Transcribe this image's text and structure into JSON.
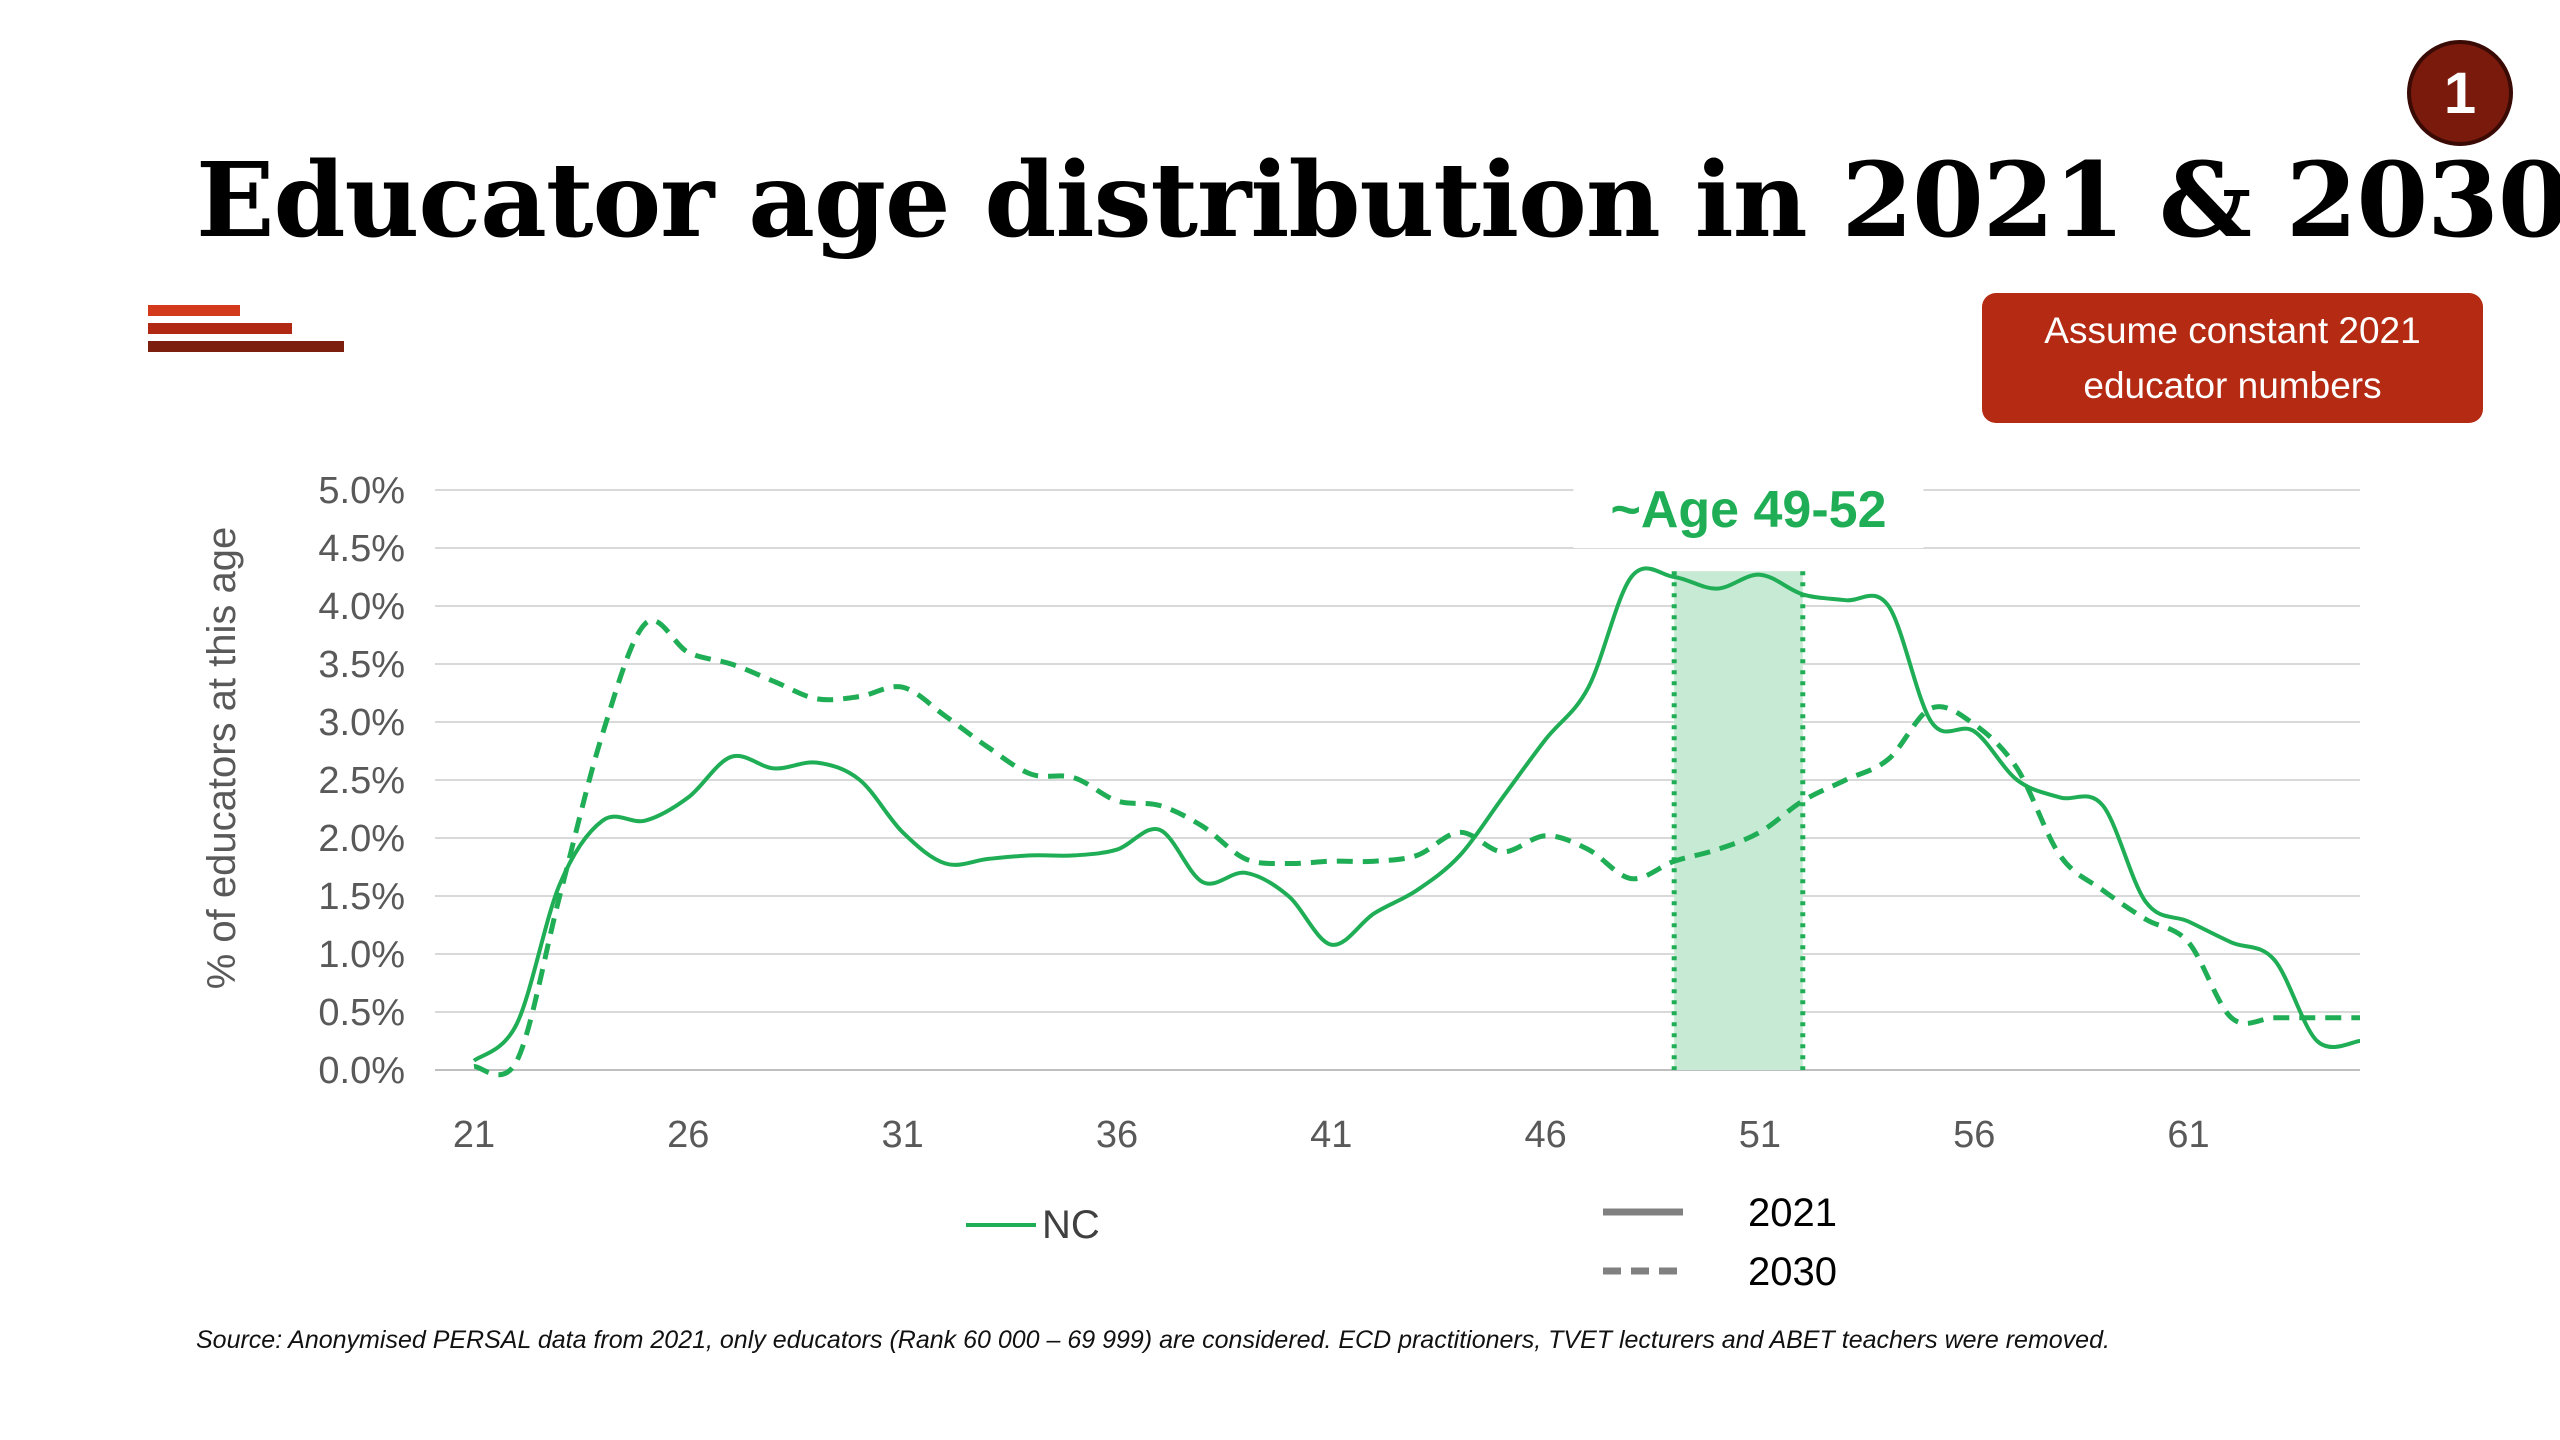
{
  "title": "Educator age distribution in 2021 & 2030",
  "badge": "1",
  "callout": {
    "line1": "Assume constant 2021",
    "line2": "educator numbers"
  },
  "source": "Source: Anonymised PERSAL data from 2021, only educators (Rank 60 000 – 69 999) are considered. ECD practitioners, TVET lecturers and ABET teachers were removed.",
  "colors": {
    "series": "#1fae55",
    "highlight": "#c6ead3",
    "accent": "#b52a12",
    "badge": "#7a1a0c"
  },
  "chart_data": {
    "type": "line",
    "title": "",
    "xlabel": "",
    "ylabel": "% of educators at this age",
    "xlim": [
      21,
      65
    ],
    "ylim": [
      0,
      5.0
    ],
    "x_ticks": [
      21,
      26,
      31,
      36,
      41,
      46,
      51,
      56,
      61
    ],
    "y_ticks": [
      "0.0%",
      "0.5%",
      "1.0%",
      "1.5%",
      "2.0%",
      "2.5%",
      "3.0%",
      "3.5%",
      "4.0%",
      "4.5%",
      "5.0%"
    ],
    "grid": true,
    "x": [
      21,
      22,
      23,
      24,
      25,
      26,
      27,
      28,
      29,
      30,
      31,
      32,
      33,
      34,
      35,
      36,
      37,
      38,
      39,
      40,
      41,
      42,
      43,
      44,
      45,
      46,
      47,
      48,
      49,
      50,
      51,
      52,
      53,
      54,
      55,
      56,
      57,
      58,
      59,
      60,
      61,
      62,
      63,
      64,
      65
    ],
    "series": [
      {
        "name": "2021",
        "style": "solid",
        "values": [
          0.08,
          0.4,
          1.6,
          2.15,
          2.15,
          2.35,
          2.7,
          2.6,
          2.65,
          2.5,
          2.05,
          1.78,
          1.82,
          1.85,
          1.85,
          1.9,
          2.07,
          1.62,
          1.7,
          1.5,
          1.08,
          1.35,
          1.55,
          1.85,
          2.35,
          2.85,
          3.3,
          4.25,
          4.25,
          4.15,
          4.27,
          4.1,
          4.05,
          4.0,
          3.0,
          2.92,
          2.5,
          2.35,
          2.28,
          1.45,
          1.28,
          1.1,
          0.95,
          0.25,
          0.25
        ]
      },
      {
        "name": "2030",
        "style": "dashed",
        "values": [
          0.03,
          0.08,
          1.5,
          2.9,
          3.85,
          3.6,
          3.5,
          3.35,
          3.2,
          3.22,
          3.3,
          3.05,
          2.78,
          2.55,
          2.52,
          2.32,
          2.28,
          2.1,
          1.82,
          1.78,
          1.8,
          1.8,
          1.85,
          2.05,
          1.88,
          2.02,
          1.9,
          1.65,
          1.8,
          1.9,
          2.05,
          2.32,
          2.5,
          2.68,
          3.12,
          2.98,
          2.6,
          1.85,
          1.55,
          1.3,
          1.1,
          0.45,
          0.45,
          0.45,
          0.45
        ]
      }
    ],
    "highlight": {
      "from": 49,
      "to": 52,
      "label": "~Age 49-52"
    },
    "legend": {
      "series_label": "NC",
      "solid_label": "2021",
      "dashed_label": "2030",
      "position": "bottom"
    }
  }
}
